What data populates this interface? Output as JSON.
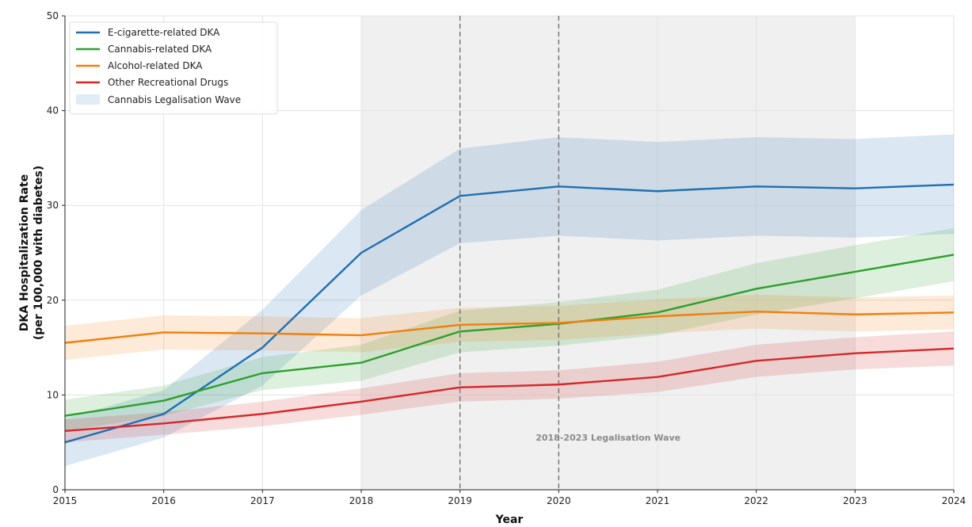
{
  "chart_data": {
    "type": "line",
    "x": [
      2015,
      2016,
      2017,
      2018,
      2019,
      2020,
      2021,
      2022,
      2023,
      2024
    ],
    "xlim": [
      2015,
      2024
    ],
    "ylim": [
      0,
      50
    ],
    "yticks": [
      0,
      10,
      20,
      30,
      40,
      50
    ],
    "xlabel": "Year",
    "ylabel_line1": "DKA Hospitalization Rate",
    "ylabel_line2": "(per 100,000 with diabetes)",
    "grid": true,
    "legend_position": "top-left",
    "series": [
      {
        "name": "E-cigarette-related DKA",
        "color": "#1f6fb2",
        "values": [
          5.0,
          8.0,
          15.0,
          25.0,
          31.0,
          32.0,
          31.5,
          32.0,
          31.8,
          32.2
        ],
        "lower": [
          2.5,
          5.5,
          11.0,
          20.5,
          26.0,
          26.8,
          26.3,
          26.8,
          26.6,
          27.0
        ],
        "upper": [
          7.5,
          10.5,
          19.0,
          29.5,
          36.0,
          37.2,
          36.7,
          37.2,
          37.0,
          37.5
        ]
      },
      {
        "name": "Cannabis-related DKA",
        "color": "#2ca02c",
        "values": [
          7.8,
          9.4,
          12.3,
          13.4,
          16.7,
          17.5,
          18.7,
          21.2,
          23.0,
          24.8
        ],
        "lower": [
          6.2,
          7.8,
          10.5,
          11.5,
          14.5,
          15.2,
          16.3,
          18.5,
          20.2,
          22.0
        ],
        "upper": [
          9.5,
          11.0,
          14.0,
          15.3,
          18.9,
          19.8,
          21.1,
          23.9,
          25.8,
          27.6
        ]
      },
      {
        "name": "Alcohol-related DKA",
        "color": "#f07f0e",
        "values": [
          15.5,
          16.6,
          16.5,
          16.3,
          17.4,
          17.6,
          18.3,
          18.8,
          18.5,
          18.7
        ],
        "lower": [
          13.7,
          14.8,
          14.7,
          14.5,
          15.6,
          15.8,
          16.5,
          17.0,
          16.7,
          16.9
        ],
        "upper": [
          17.3,
          18.4,
          18.3,
          18.1,
          19.2,
          19.4,
          20.1,
          20.6,
          20.3,
          20.5
        ]
      },
      {
        "name": "Other Recreational Drugs",
        "color": "#d62728",
        "values": [
          6.2,
          7.0,
          8.0,
          9.3,
          10.8,
          11.1,
          11.9,
          13.6,
          14.4,
          14.9
        ],
        "lower": [
          5.0,
          5.8,
          6.7,
          7.9,
          9.3,
          9.6,
          10.3,
          11.9,
          12.7,
          13.1
        ],
        "upper": [
          7.4,
          8.2,
          9.3,
          10.7,
          12.3,
          12.6,
          13.5,
          15.3,
          16.1,
          16.7
        ]
      }
    ],
    "shaded_region": {
      "name": "Cannabis Legalisation Wave",
      "from": 2018,
      "to": 2023,
      "color": "#e9e9e9"
    },
    "vlines": [
      2019,
      2020
    ],
    "annotation": {
      "text": "2018-2023 Legalisation Wave",
      "x": 2020.5,
      "y": 5.5
    },
    "legend_patch_color": "#dbe7f3"
  }
}
